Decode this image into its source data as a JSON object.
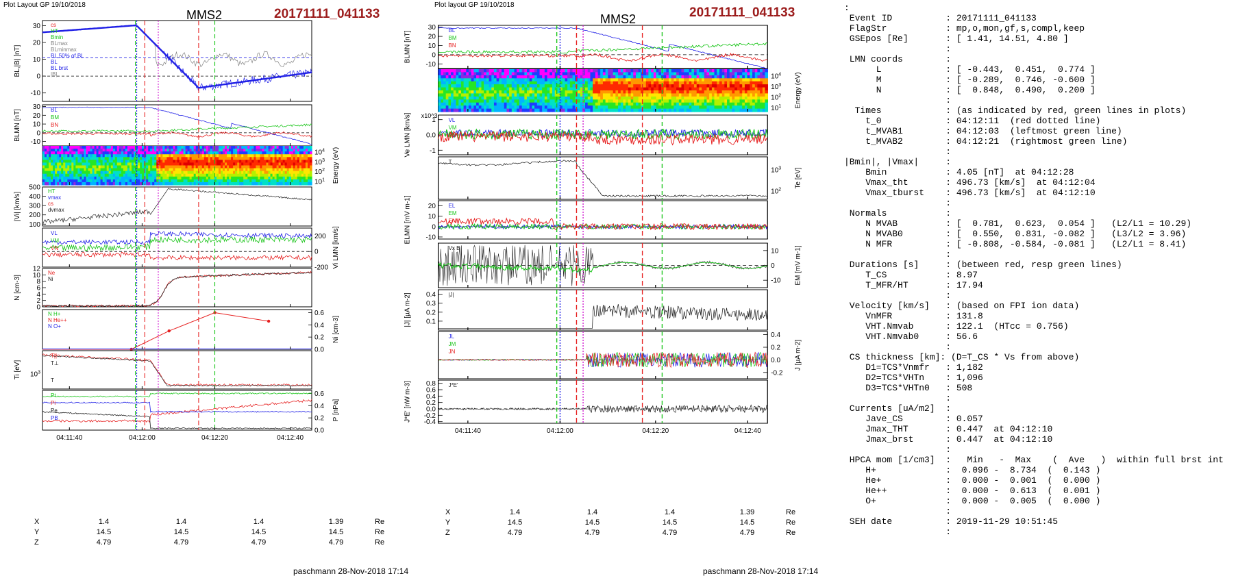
{
  "left": {
    "header": "Plot Layout GP 19/10/2018",
    "sc": "MMS2",
    "event": "20171111_041133",
    "footer": "paschmann 28-Nov-2018 17:14",
    "time_ticks": [
      "04:11:40",
      "04:12:00",
      "04:12:20",
      "04:12:40"
    ],
    "coords": {
      "labels": [
        "X",
        "Y",
        "Z"
      ],
      "unit": "Re",
      "values": [
        [
          "1.4",
          "1.4",
          "1.4",
          "1.39"
        ],
        [
          "14.5",
          "14.5",
          "14.5",
          "14.5"
        ],
        [
          "4.79",
          "4.79",
          "4.79",
          "4.79"
        ]
      ]
    }
  },
  "middle": {
    "header": "Plot layout GP 19/10/2018",
    "sc": "MMS2",
    "event": "20171111_041133",
    "footer": "paschmann 28-Nov-2018 17:14",
    "time_ticks": [
      "04:11:40",
      "04:12:00",
      "04:12:20",
      "04:12:40"
    ],
    "coords": {
      "labels": [
        "X",
        "Y",
        "Z"
      ],
      "unit": "Re",
      "values": [
        [
          "1.4",
          "1.4",
          "1.4",
          "1.39"
        ],
        [
          "14.5",
          "14.5",
          "14.5",
          "14.5"
        ],
        [
          "4.79",
          "4.79",
          "4.79",
          "4.79"
        ]
      ]
    }
  },
  "info_lines": [
    ":",
    " Event ID          : 20171111_041133",
    " FlagStr           : mp,o,mon,gf,s,compl,keep",
    " GSEpos [Re]       : [ 1.41, 14.51, 4.80 ]",
    "                   :",
    " LMN coords        :",
    "      L            : [ -0.443,  0.451,  0.774 ]",
    "      M            : [ -0.289,  0.746, -0.600 ]",
    "      N            : [  0.848,  0.490,  0.200 ]",
    "                   :",
    "  Times            : (as indicated by red, green lines in plots)",
    "    t_0            : 04:12:11  (red dotted line)",
    "    t_MVAB1        : 04:12:03  (leftmost green line)",
    "    t_MVAB2        : 04:12:21  (rightmost green line)",
    "                   :",
    "|Bmin|, |Vmax|     :",
    "    Bmin           : 4.05 [nT]  at 04:12:28",
    "    Vmax_tht       : 496.73 [km/s]  at 04:12:04",
    "    Vmax_tburst    : 496.73 [km/s]  at 04:12:10",
    "                   :",
    " Normals           :",
    "    N MVAB         : [  0.781,  0.623,  0.054 ]   (L2/L1 = 10.29)",
    "    N MVAB0        : [  0.550,  0.831, -0.082 ]   (L3/L2 = 3.96)",
    "    N MFR          : [ -0.808, -0.584, -0.081 ]   (L2/L1 = 8.41)",
    "                   :",
    " Durations [s]     : (between red, resp green lines)",
    "    T_CS           : 8.97",
    "    T_MFR/HT       : 17.94",
    "                   :",
    " Velocity [km/s]   : (based on FPI ion data)",
    "    VnMFR          : 131.8",
    "    VHT.Nmvab      : 122.1  (HTcc = 0.756)",
    "    VHT.Nmvab0     : 56.6",
    "                   :",
    " CS thickness [km]: (D=T_CS * Vs from above)",
    "    D1=TCS*Vnmfr   : 1,182",
    "    D2=TCS*VHTn    : 1,096",
    "    D3=TCS*VHTn0   : 508",
    "                   :",
    " Currents [uA/m2]  :",
    "    Jave_CS        : 0.057",
    "    Jmax_THT       : 0.447  at 04:12:10",
    "    Jmax_brst      : 0.447  at 04:12:10",
    "                   :",
    " HPCA mom [1/cm3]  :   Min   -  Max    (  Ave   )  within full brst int",
    "    H+             :  0.096 -  8.734  (  0.143 )",
    "    He+            :  0.000 -  0.001  (  0.000 )",
    "    He++           :  0.000 -  0.613  (  0.001 )",
    "    O+             :  0.000 -  0.005  (  0.000 )",
    "                   :",
    " SEH date          : 2019-11-29 10:51:45",
    "                   :"
  ],
  "chart_data": [
    {
      "type": "line",
      "panel": "L1",
      "ylabel": "BL,|B| [nT]",
      "ylim": [
        -15,
        33
      ],
      "yticks": [
        30,
        20,
        10,
        0,
        -10
      ],
      "legend": [
        "cs",
        "HT",
        "Bmin",
        "BLmax",
        "BLminmax",
        "BL 50% of BL",
        "BL",
        "BL brst",
        "|B|"
      ]
    },
    {
      "type": "line",
      "panel": "L2",
      "ylabel": "BLMN [nT]",
      "ylim": [
        -15,
        32
      ],
      "yticks": [
        30,
        20,
        10,
        0,
        -10
      ],
      "series": [
        {
          "name": "BL",
          "color": "#1f1fe6"
        },
        {
          "name": "BM",
          "color": "#17c417"
        },
        {
          "name": "BN",
          "color": "#e62020"
        }
      ]
    },
    {
      "type": "heatmap",
      "panel": "L3",
      "ylabel": "Energy (eV)",
      "yticks": [
        "10^4",
        "10^3",
        "10^2",
        "10^1"
      ]
    },
    {
      "type": "line",
      "panel": "L4",
      "ylabel": "|Vi| [km/s]",
      "ylim": [
        80,
        500
      ],
      "yticks": [
        500,
        400,
        300,
        200,
        100
      ],
      "legend": [
        "HT",
        "vmax",
        "cs",
        "dvmax"
      ]
    },
    {
      "type": "line",
      "panel": "L5",
      "ylabel": "Vi LMN [km/s]",
      "ylim": [
        -200,
        300
      ],
      "yticks": [
        200,
        0,
        -200
      ],
      "series": [
        {
          "name": "VL",
          "color": "#1f1fe6"
        },
        {
          "name": "VM",
          "color": "#17c417"
        },
        {
          "name": "VN",
          "color": "#e62020"
        }
      ]
    },
    {
      "type": "line",
      "panel": "L6",
      "ylabel": "N [cm-3]",
      "ylim": [
        0,
        12
      ],
      "yticks": [
        12,
        10,
        8,
        6,
        4,
        2,
        0
      ],
      "series": [
        {
          "name": "Ne",
          "color": "#e62020"
        },
        {
          "name": "Ni",
          "color": "#222222"
        }
      ]
    },
    {
      "type": "line",
      "panel": "L7",
      "ylabel": "Ni [cm-3]",
      "ylim": [
        0,
        0.65
      ],
      "yticks": [
        0.6,
        0.4,
        0.2,
        0.0
      ],
      "series": [
        {
          "name": "N H+",
          "color": "#17c417"
        },
        {
          "name": "N He++",
          "color": "#e62020",
          "x": [
            -0.5,
            0.35,
            0.7,
            0.85
          ],
          "values": [
            0.0,
            0.3,
            0.6,
            0.46
          ]
        },
        {
          "name": "N O+",
          "color": "#1f1fe6"
        }
      ]
    },
    {
      "type": "line",
      "panel": "L8",
      "ylabel": "Ti [eV]",
      "yticks": [
        "10^3"
      ],
      "series": [
        {
          "name": "T||",
          "color": "#e62020"
        },
        {
          "name": "T⊥",
          "color": "#222222"
        }
      ]
    },
    {
      "type": "line",
      "panel": "L9",
      "ylabel": "P [nPa]",
      "ylim": [
        0,
        0.65
      ],
      "yticks": [
        0.6,
        0.4,
        0.2,
        0.0
      ],
      "series": [
        {
          "name": "Pt",
          "color": "#17c417"
        },
        {
          "name": "Pi",
          "color": "#e62020"
        },
        {
          "name": "Pe",
          "color": "#222222"
        },
        {
          "name": "PB",
          "color": "#1f1fe6"
        }
      ]
    },
    {
      "type": "line",
      "panel": "M1",
      "ylabel": "BLMN [nT]",
      "ylim": [
        -15,
        32
      ],
      "yticks": [
        30,
        20,
        10,
        0,
        -10
      ],
      "series": [
        {
          "name": "BL",
          "color": "#1f1fe6"
        },
        {
          "name": "BM",
          "color": "#17c417"
        },
        {
          "name": "BN",
          "color": "#e62020"
        }
      ]
    },
    {
      "type": "heatmap",
      "panel": "M2",
      "ylabel": "Energy (eV)",
      "yticks": [
        "10^4",
        "10^3",
        "10^2",
        "10^1"
      ]
    },
    {
      "type": "line",
      "panel": "M3",
      "ylabel": "Ve LMN [km/s]",
      "yfactor": "x10^3",
      "ylim": [
        -1.3,
        1.3
      ],
      "yticks": [
        1,
        0,
        -1
      ],
      "series": [
        {
          "name": "VL",
          "color": "#1f1fe6"
        },
        {
          "name": "VM",
          "color": "#17c417"
        },
        {
          "name": "VN",
          "color": "#e62020"
        }
      ]
    },
    {
      "type": "line",
      "panel": "M4",
      "ylabel": "Te [eV]",
      "yticks": [
        "10^3",
        "10^2"
      ],
      "series": [
        {
          "name": "T",
          "color": "#222222"
        }
      ]
    },
    {
      "type": "line",
      "panel": "M5",
      "ylabel": "ELMN [mV m-1]",
      "ylim": [
        -12,
        25
      ],
      "yticks": [
        20,
        10,
        0,
        -10
      ],
      "series": [
        {
          "name": "EL",
          "color": "#1f1fe6"
        },
        {
          "name": "EM",
          "color": "#17c417"
        },
        {
          "name": "EN",
          "color": "#e62020"
        }
      ]
    },
    {
      "type": "line",
      "panel": "M6",
      "ylabel": "EM [mV m-1]",
      "ylim": [
        -15,
        15
      ],
      "yticks": [
        10,
        0,
        -10
      ],
      "series": [
        {
          "name": "Vx B",
          "color": "#222222"
        }
      ]
    },
    {
      "type": "line",
      "panel": "M7",
      "ylabel": "|J| [µA m-2]",
      "ylim": [
        0,
        0.45
      ],
      "yticks": [
        0.4,
        0.3,
        0.2,
        0.1
      ],
      "series": [
        {
          "name": "|J|",
          "color": "#222222"
        }
      ]
    },
    {
      "type": "line",
      "panel": "M8",
      "ylabel": "J [µA m-2]",
      "ylim": [
        -0.3,
        0.45
      ],
      "yticks": [
        0.4,
        0.2,
        0.0,
        -0.2
      ],
      "series": [
        {
          "name": "JL",
          "color": "#1f1fe6"
        },
        {
          "name": "JM",
          "color": "#17c417"
        },
        {
          "name": "JN",
          "color": "#e62020"
        }
      ]
    },
    {
      "type": "line",
      "panel": "M9",
      "ylabel": "J*E' [nW m-3]",
      "ylim": [
        -0.45,
        0.9
      ],
      "yticks": [
        0.8,
        0.6,
        0.4,
        0.2,
        0.0,
        -0.2,
        -0.4
      ],
      "series": [
        {
          "name": "J*E'",
          "color": "#222222"
        }
      ]
    }
  ]
}
